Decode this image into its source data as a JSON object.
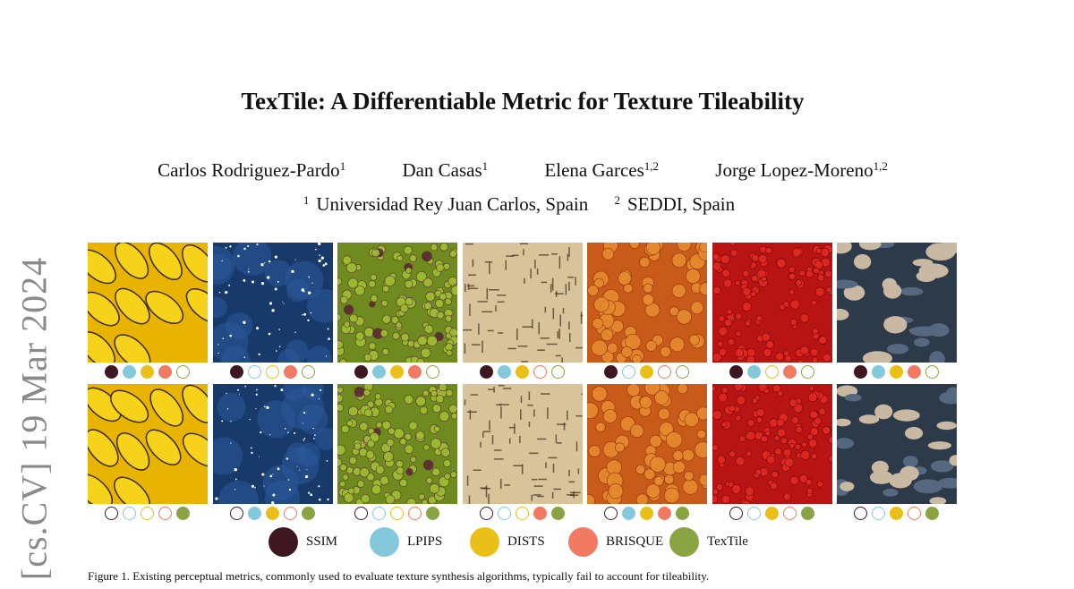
{
  "sidebar_stamp": "[cs.CV]  19 Mar 2024",
  "title": "TexTile: A Differentiable Metric for Texture Tileability",
  "authors": [
    {
      "name": "Carlos Rodriguez-Pardo",
      "aff": "1"
    },
    {
      "name": "Dan Casas",
      "aff": "1"
    },
    {
      "name": "Elena Garces",
      "aff": "1,2"
    },
    {
      "name": "Jorge Lopez-Moreno",
      "aff": "1,2"
    }
  ],
  "affiliations": [
    {
      "num": "1",
      "name": "Universidad Rey Juan Carlos, Spain"
    },
    {
      "num": "2",
      "name": "SEDDI, Spain"
    }
  ],
  "figure": {
    "columns": [
      {
        "texture": "bananas",
        "base": "#e9b400",
        "blob": "#f7d21a",
        "accent": "#3a2a05"
      },
      {
        "texture": "starry-sky",
        "base": "#183a6b",
        "blob": "#2b5a9a",
        "accent": "#ffffff"
      },
      {
        "texture": "green-peas",
        "base": "#6f8a1e",
        "blob": "#9fbd32",
        "accent": "#5a2a33"
      },
      {
        "texture": "hieroglyphs",
        "base": "#d8c39a",
        "blob": "#c2a978",
        "accent": "#3a2c1a"
      },
      {
        "texture": "orange-pebbles",
        "base": "#c85a1a",
        "blob": "#e68a2e",
        "accent": "#8a2e0c"
      },
      {
        "texture": "red-scales",
        "base": "#b81414",
        "blob": "#e02a22",
        "accent": "#6a0808"
      },
      {
        "texture": "clouds",
        "base": "#2d3a4a",
        "blob": "#c9b9a3",
        "accent": "#566780"
      }
    ],
    "top_row_indicators": [
      [
        1,
        1,
        1,
        1,
        0
      ],
      [
        1,
        0,
        0,
        1,
        0
      ],
      [
        1,
        1,
        1,
        1,
        0
      ],
      [
        1,
        1,
        1,
        0,
        0
      ],
      [
        1,
        0,
        1,
        0,
        0
      ],
      [
        1,
        1,
        0,
        1,
        0
      ],
      [
        1,
        1,
        1,
        1,
        0
      ]
    ],
    "bottom_row_indicators": [
      [
        0,
        0,
        0,
        0,
        1
      ],
      [
        0,
        1,
        1,
        0,
        1
      ],
      [
        0,
        0,
        0,
        0,
        1
      ],
      [
        0,
        0,
        0,
        1,
        1
      ],
      [
        0,
        1,
        1,
        1,
        1
      ],
      [
        0,
        0,
        1,
        0,
        1
      ],
      [
        0,
        0,
        1,
        0,
        1
      ]
    ],
    "legend": [
      {
        "label": "SSIM",
        "color": "#3f1720"
      },
      {
        "label": "LPIPS",
        "color": "#84c8dc"
      },
      {
        "label": "DISTS",
        "color": "#eac018"
      },
      {
        "label": "BRISQUE",
        "color": "#f27a62"
      },
      {
        "label": "TexTile",
        "color": "#8aa444"
      }
    ]
  },
  "caption": "Figure 1.  Existing perceptual metrics, commonly used to evaluate texture synthesis algorithms, typically fail to account for tileability."
}
